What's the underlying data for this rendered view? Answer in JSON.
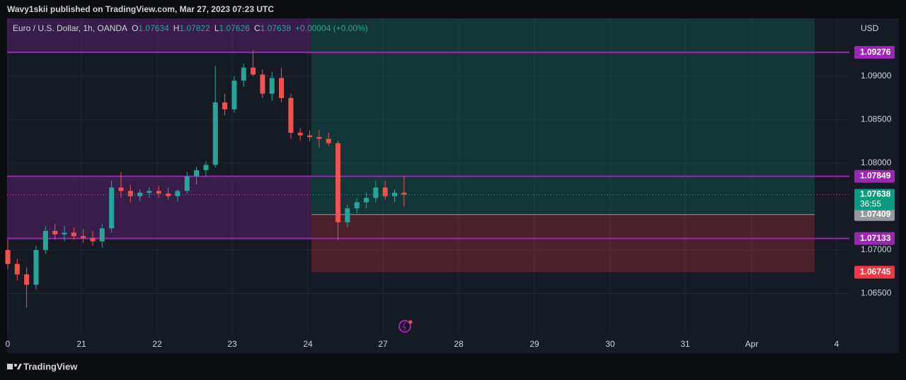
{
  "header": {
    "publisher": "Wavy1skii published on TradingView.com, Mar 27, 2023 07:23 UTC"
  },
  "legend": {
    "symbol": "Euro / U.S. Dollar, 1h, OANDA",
    "open_label": "O",
    "open": 1.07634,
    "high_label": "H",
    "high": 1.07822,
    "low_label": "L",
    "low": 1.07626,
    "close_label": "C",
    "close": 1.07638,
    "change": "+0.00004 (+0.00%)"
  },
  "footer": {
    "brand": "TradingView"
  },
  "chart_data": {
    "type": "candlestick",
    "currency": "USD",
    "ylim": [
      1.06016,
      1.09667
    ],
    "yticks": [
      {
        "value": 1.09,
        "label": "1.09000"
      },
      {
        "value": 1.085,
        "label": "1.08500"
      },
      {
        "value": 1.08,
        "label": "1.08000"
      },
      {
        "value": 1.07,
        "label": "1.07000"
      },
      {
        "value": 1.065,
        "label": "1.06500"
      }
    ],
    "xticks": [
      "0",
      "21",
      "22",
      "23",
      "24",
      "27",
      "28",
      "29",
      "30",
      "31",
      "Apr",
      "4"
    ],
    "up_color": "#26a69a",
    "down_color": "#ef5350",
    "open": [
      1.07,
      1.0684,
      1.0672,
      1.066,
      1.07,
      1.0722,
      1.0718,
      1.072,
      1.0716,
      1.0714,
      1.071,
      1.0725,
      1.0772,
      1.0768,
      1.0762,
      1.0766,
      1.0768,
      1.0765,
      1.0762,
      1.0768,
      1.0785,
      1.0792,
      1.0798,
      1.087,
      1.0862,
      1.0895,
      1.091,
      1.0902,
      1.088,
      1.0898,
      1.0875,
      1.0835,
      1.0832,
      1.083,
      1.0828,
      1.0823,
      1.0732,
      1.0748,
      1.0755,
      1.076,
      1.0772,
      1.0762,
      1.0766
    ],
    "high": [
      1.0712,
      1.069,
      1.068,
      1.0705,
      1.0728,
      1.073,
      1.0728,
      1.0726,
      1.0724,
      1.0722,
      1.073,
      1.078,
      1.079,
      1.0775,
      1.077,
      1.0772,
      1.0774,
      1.0772,
      1.077,
      1.079,
      1.0796,
      1.0802,
      1.0912,
      1.088,
      1.09,
      1.0915,
      1.093,
      1.0908,
      1.0905,
      1.091,
      1.088,
      1.084,
      1.0838,
      1.0838,
      1.0835,
      1.0826,
      1.0752,
      1.076,
      1.0766,
      1.078,
      1.078,
      1.077,
      1.0785
    ],
    "low": [
      1.0678,
      1.0665,
      1.0634,
      1.0655,
      1.0695,
      1.0712,
      1.071,
      1.0712,
      1.0708,
      1.0705,
      1.0703,
      1.072,
      1.076,
      1.0755,
      1.0756,
      1.076,
      1.076,
      1.0758,
      1.0755,
      1.0765,
      1.0775,
      1.0785,
      1.0795,
      1.0855,
      1.0858,
      1.0888,
      1.09,
      1.0875,
      1.0872,
      1.087,
      1.0828,
      1.0826,
      1.0825,
      1.0818,
      1.082,
      1.0712,
      1.0726,
      1.0742,
      1.0748,
      1.0755,
      1.0758,
      1.0755,
      1.075
    ],
    "close": [
      1.0684,
      1.0672,
      1.066,
      1.07,
      1.0722,
      1.0718,
      1.072,
      1.0716,
      1.0714,
      1.071,
      1.0725,
      1.0772,
      1.0768,
      1.0762,
      1.0766,
      1.0768,
      1.0765,
      1.0762,
      1.0768,
      1.0785,
      1.0792,
      1.0798,
      1.087,
      1.0862,
      1.0895,
      1.091,
      1.0902,
      1.088,
      1.0898,
      1.0875,
      1.0835,
      1.0832,
      1.083,
      1.0828,
      1.0823,
      1.0732,
      1.0748,
      1.0755,
      1.076,
      1.0772,
      1.0762,
      1.0766,
      1.07638
    ],
    "levels": [
      {
        "value": 1.09276,
        "color": "#9c27b0"
      },
      {
        "value": 1.07849,
        "color": "#9c27b0"
      },
      {
        "value": 1.07133,
        "color": "#9c27b0"
      }
    ],
    "position": {
      "entry": 1.07409,
      "stop": 1.06745
    },
    "last": {
      "value": 1.07638,
      "countdown": "36:55"
    }
  }
}
